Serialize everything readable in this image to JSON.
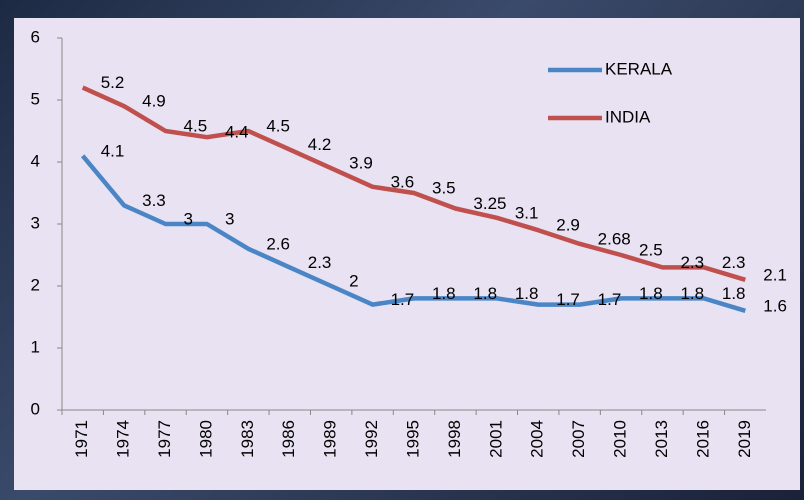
{
  "chart_data": {
    "type": "line",
    "categories": [
      "1971",
      "1974",
      "1977",
      "1980",
      "1983",
      "1986",
      "1989",
      "1992",
      "1995",
      "1998",
      "2001",
      "2004",
      "2007",
      "2010",
      "2013",
      "2016",
      "2019"
    ],
    "series": [
      {
        "name": "KERALA",
        "color": "#4a86c6",
        "values": [
          4.1,
          3.3,
          3,
          3,
          2.6,
          2.3,
          2,
          1.7,
          1.8,
          1.8,
          1.8,
          1.7,
          1.7,
          1.8,
          1.8,
          1.8,
          1.6
        ]
      },
      {
        "name": "INDIA",
        "color": "#c0504d",
        "values": [
          5.2,
          4.9,
          4.5,
          4.4,
          4.5,
          4.2,
          3.9,
          3.6,
          3.5,
          3.25,
          3.1,
          2.9,
          2.68,
          2.5,
          2.3,
          2.3,
          2.1
        ]
      }
    ],
    "ylim": [
      0,
      6
    ],
    "yticks": [
      0,
      1,
      2,
      3,
      4,
      5,
      6
    ],
    "legend": "top-right"
  }
}
